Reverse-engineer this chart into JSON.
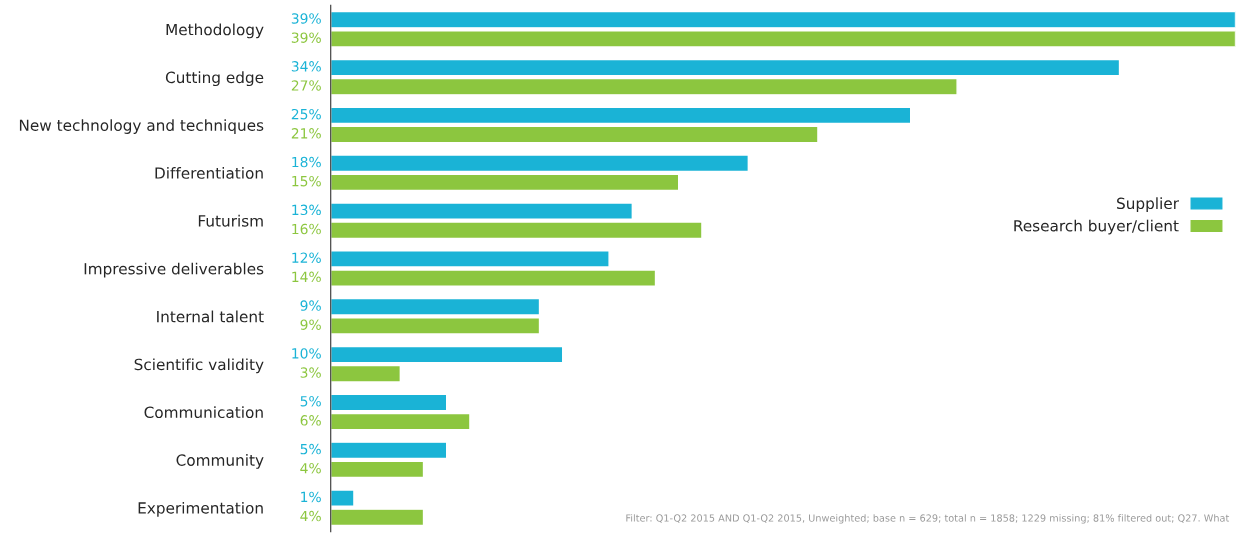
{
  "chart_data": {
    "type": "bar",
    "orientation": "horizontal",
    "categories": [
      "Methodology",
      "Cutting edge",
      "New technology and techniques",
      "Differentiation",
      "Futurism",
      "Impressive deliverables",
      "Internal talent",
      "Scientific validity",
      "Communication",
      "Community",
      "Experimentation"
    ],
    "series": [
      {
        "name": "Supplier",
        "color": "#1ab3d6",
        "values": [
          39,
          34,
          25,
          18,
          13,
          12,
          9,
          10,
          5,
          5,
          1
        ],
        "value_labels": [
          "39%",
          "34%",
          "25%",
          "18%",
          "13%",
          "12%",
          "9%",
          "10%",
          "5%",
          "5%",
          "1%"
        ]
      },
      {
        "name": "Research buyer/client",
        "color": "#8cc63f",
        "values": [
          39,
          27,
          21,
          15,
          16,
          14,
          9,
          3,
          6,
          4,
          4
        ],
        "value_labels": [
          "39%",
          "27%",
          "21%",
          "15%",
          "16%",
          "14%",
          "9%",
          "3%",
          "6%",
          "4%",
          "4%"
        ]
      }
    ],
    "legend": "right",
    "grid": false,
    "tick_labels": "y",
    "annotations": [
      "Filter: Q1-Q2 2015 AND Q1-Q2 2015, Unweighted; base n = 629; total n = 1858; 1229 missing; 81% filtered out; Q27. What"
    ]
  }
}
